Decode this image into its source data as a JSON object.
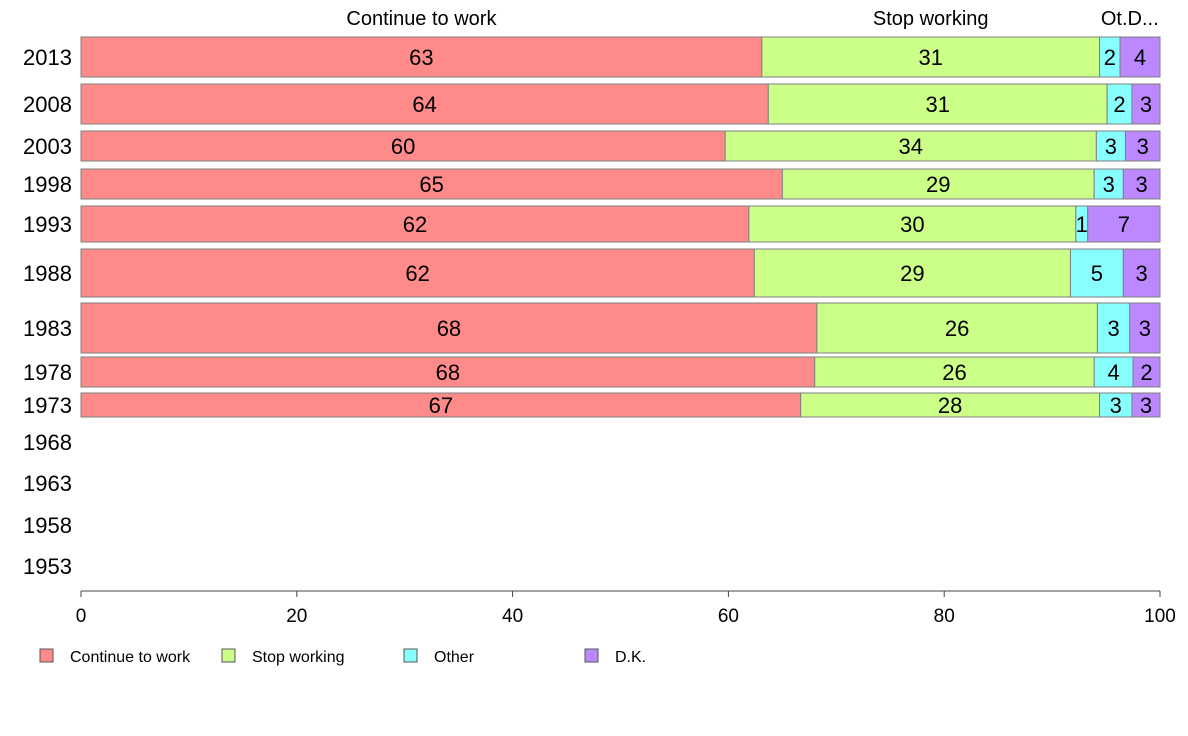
{
  "chart_data": {
    "type": "bar",
    "orientation": "horizontal",
    "stacked": true,
    "column_headers": [
      "Continue to work",
      "Stop working",
      "Ot.D..."
    ],
    "categories": [
      "2013",
      "2008",
      "2003",
      "1998",
      "1993",
      "1988",
      "1983",
      "1978",
      "1973",
      "1968",
      "1963",
      "1958",
      "1953"
    ],
    "series": [
      {
        "name": "Continue to work",
        "color": "#FF8A8A",
        "values": [
          63,
          64,
          60,
          65,
          62,
          62,
          68,
          68,
          67,
          null,
          null,
          null,
          null
        ],
        "cumulative_end": [
          63.1,
          63.7,
          59.7,
          65,
          61.9,
          62.4,
          68.2,
          68,
          66.7,
          null,
          null,
          null,
          null
        ]
      },
      {
        "name": "Stop working",
        "color": "#CCFF88",
        "values": [
          31,
          31,
          34,
          29,
          30,
          29,
          26,
          26,
          28,
          null,
          null,
          null,
          null
        ],
        "cumulative_end": [
          94.4,
          95.1,
          94.1,
          93.9,
          92.2,
          91.7,
          94.2,
          93.9,
          94.4,
          null,
          null,
          null,
          null
        ]
      },
      {
        "name": "Other",
        "color": "#88FFFF",
        "values": [
          2,
          2,
          3,
          3,
          1,
          5,
          3,
          4,
          3,
          null,
          null,
          null,
          null
        ],
        "cumulative_end": [
          96.3,
          97.4,
          96.8,
          96.6,
          93.3,
          96.6,
          97.2,
          97.5,
          97.4,
          null,
          null,
          null,
          null
        ]
      },
      {
        "name": "D.K.",
        "color": "#BB88FF",
        "values": [
          4,
          3,
          3,
          3,
          7,
          3,
          3,
          2,
          3,
          null,
          null,
          null,
          null
        ],
        "cumulative_end": [
          100,
          100,
          100,
          100,
          100,
          100,
          100,
          100,
          100,
          null,
          null,
          null,
          null
        ]
      }
    ],
    "bar_weights": [
      4,
      4,
      3,
      3,
      3.6,
      4.8,
      5,
      3,
      2.4,
      0,
      0,
      0,
      0
    ],
    "xlim": [
      0,
      100
    ],
    "xticks": [
      0,
      20,
      40,
      60,
      80,
      100
    ],
    "grid": false,
    "legend_position": "bottom",
    "title": "",
    "xlabel": "",
    "ylabel": ""
  }
}
